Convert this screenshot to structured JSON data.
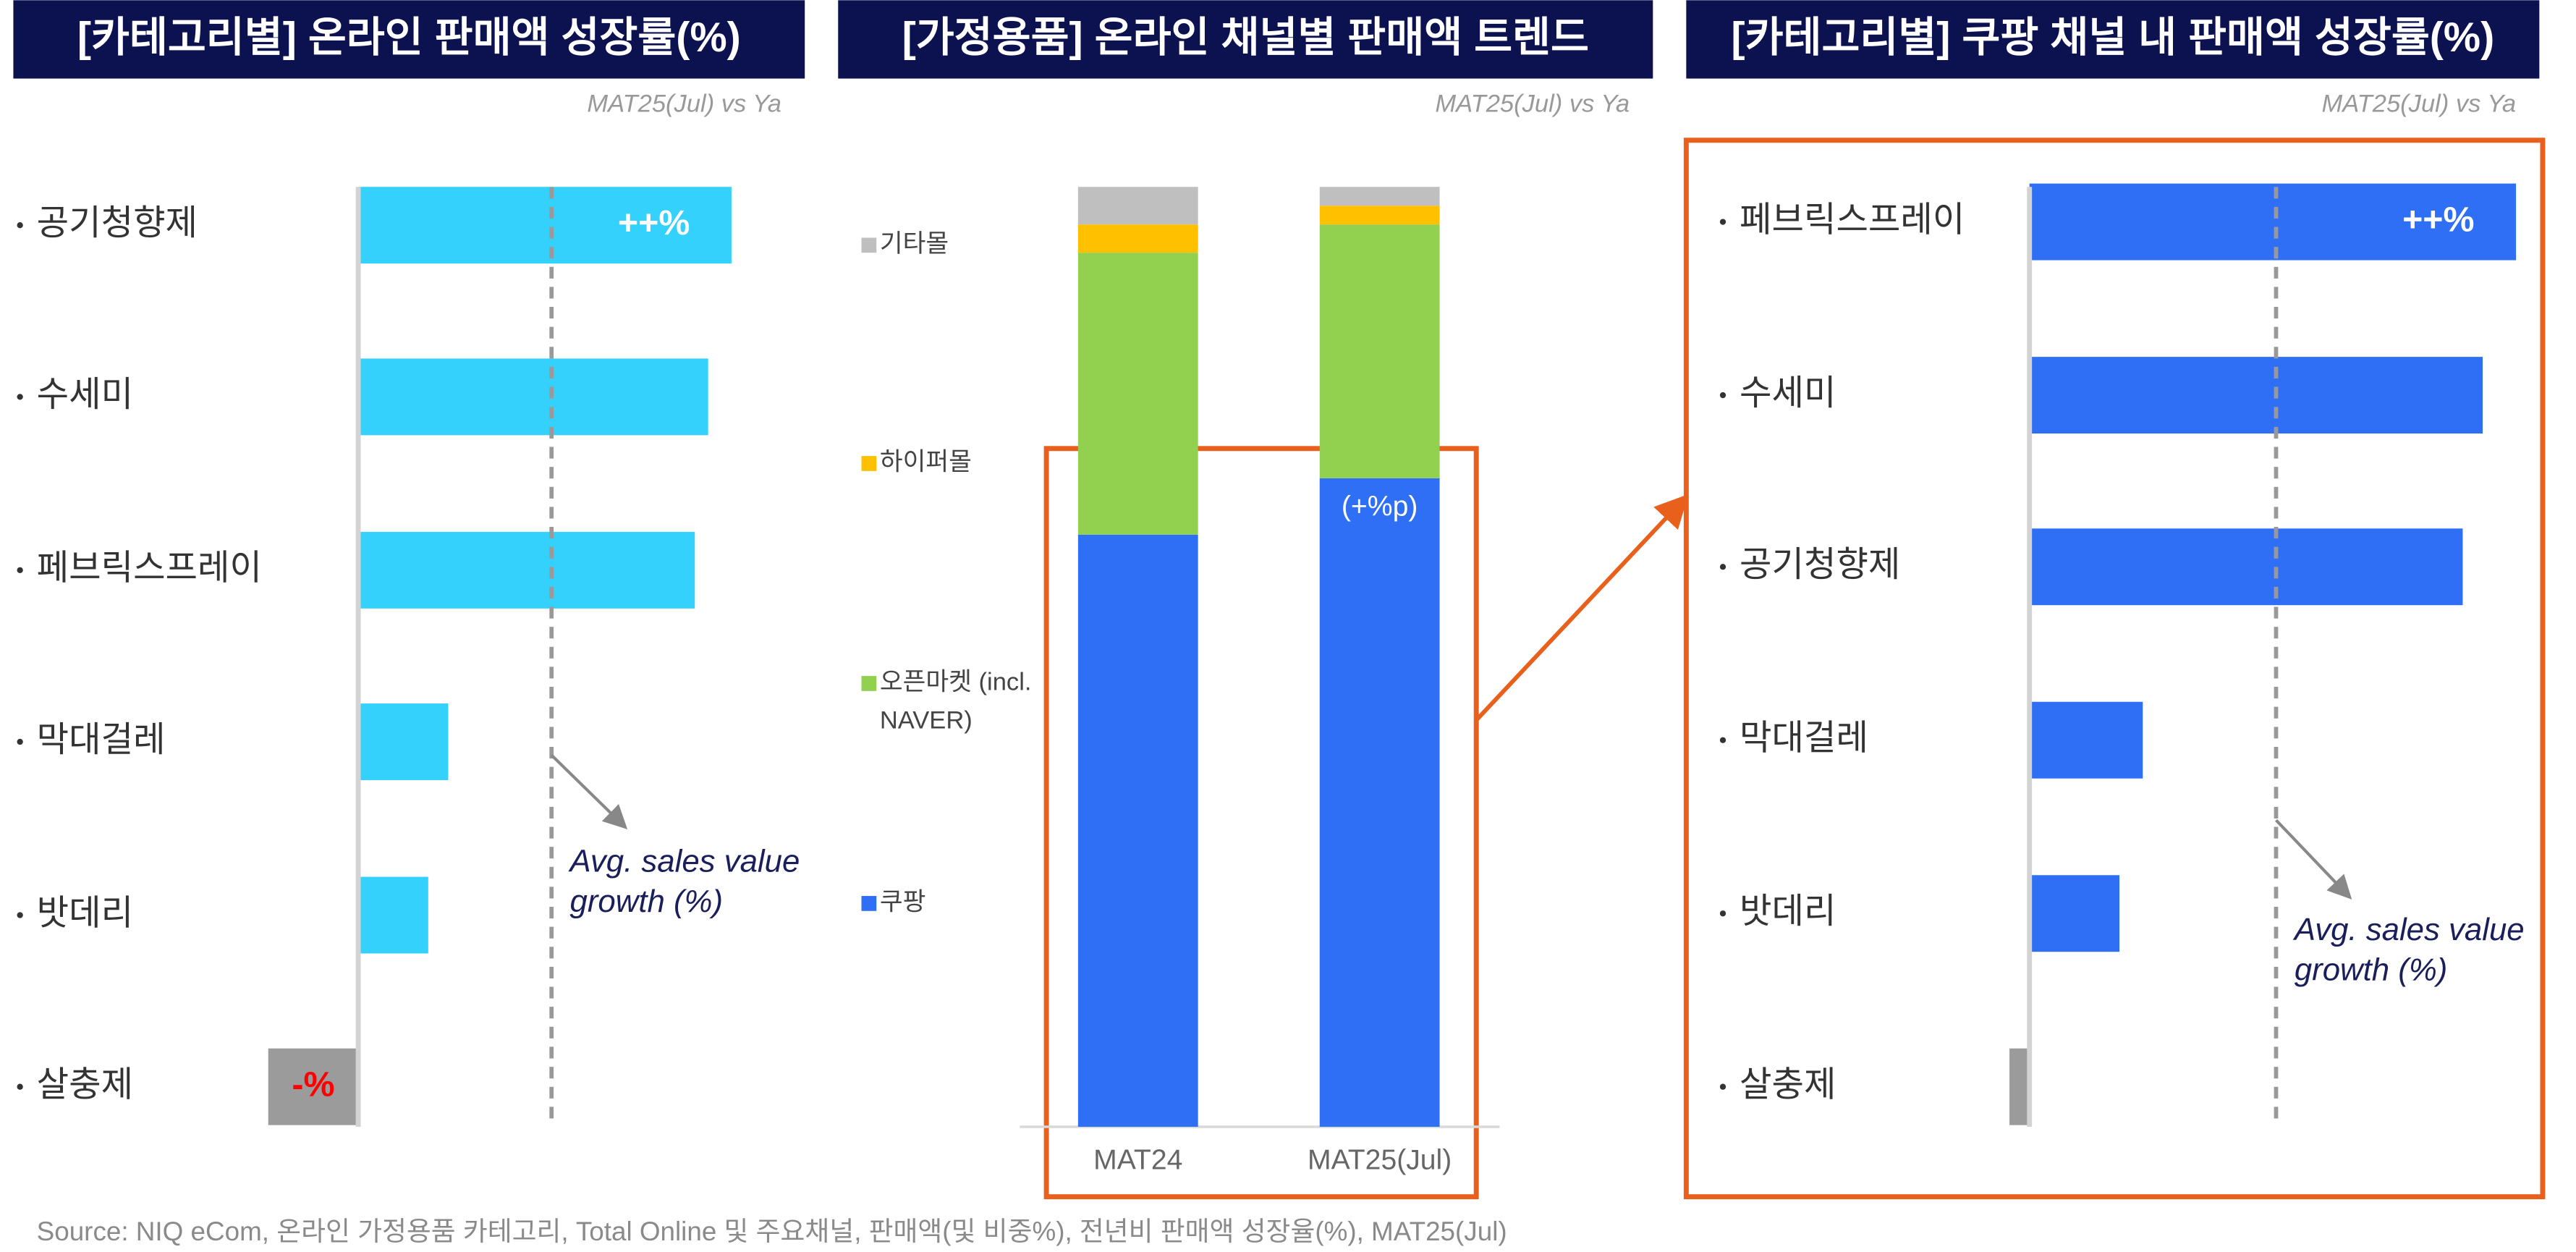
{
  "source": "Source: NIQ eCom, 온라인 가정용품 카테고리, Total Online 및 주요채널, 판매액(및 비중%), 전년비 판매액 성장율(%), MAT25(Jul)",
  "chart_data": [
    {
      "type": "hbar",
      "title": "[카테고리별] 온라인 판매액 성장률(%)",
      "subtitle": "MAT25(Jul) vs Ya",
      "categories": [
        "공기청향제",
        "수세미",
        "페브릭스프레이",
        "막대걸레",
        "밧데리",
        "살충제"
      ],
      "values": [
        112,
        105,
        101,
        27,
        21,
        -27
      ],
      "value_labels": [
        "++%",
        null,
        null,
        null,
        null,
        "-%"
      ],
      "color": "#33d1fb",
      "negative_color": "#9b9b9b",
      "negative_label_color": "#ff0000",
      "xlim": [
        -30,
        120
      ],
      "avg_line": 58,
      "annotation": [
        "Avg. sales value",
        "growth (%)"
      ]
    },
    {
      "type": "stacked_bar",
      "title": "[가정용품] 온라인 채널별 판매액 트렌드",
      "subtitle": "MAT25(Jul) vs Ya",
      "categories": [
        "MAT24",
        "MAT25(Jul)"
      ],
      "ylim": [
        0,
        100
      ],
      "series": [
        {
          "name": "쿠팡",
          "color": "#2e6ff5",
          "values": [
            63,
            69
          ],
          "value_labels": [
            null,
            "(+%p)"
          ]
        },
        {
          "name": "오픈마켓 (incl. NAVER)",
          "color": "#92d050",
          "values": [
            30,
            27
          ]
        },
        {
          "name": "하이퍼몰",
          "color": "#ffc000",
          "values": [
            3,
            2
          ]
        },
        {
          "name": "기타몰",
          "color": "#bfbfbf",
          "values": [
            4,
            2
          ]
        }
      ]
    },
    {
      "type": "hbar",
      "title": "[카테고리별] 쿠팡 채널 내 판매액 성장률(%)",
      "subtitle": "MAT25(Jul) vs Ya",
      "categories": [
        "페브릭스프레이",
        "수세미",
        "공기청향제",
        "막대걸레",
        "밧데리",
        "살충제"
      ],
      "values": [
        146,
        136,
        130,
        34,
        27,
        -6
      ],
      "value_labels": [
        "++%",
        null,
        null,
        null,
        null,
        null
      ],
      "color": "#2e6ff5",
      "negative_color": "#9b9b9b",
      "negative_label_color": "#ff0000",
      "xlim": [
        -10,
        150
      ],
      "avg_line": 74,
      "annotation": [
        "Avg. sales value",
        "growth (%)"
      ]
    }
  ]
}
